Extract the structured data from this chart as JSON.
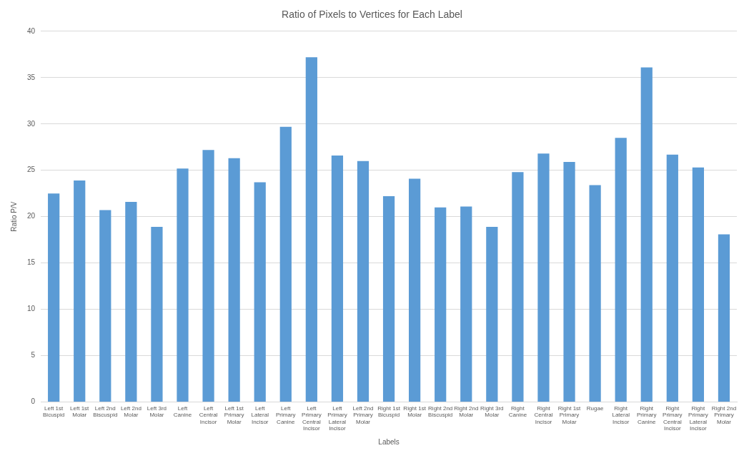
{
  "chart_data": {
    "type": "bar",
    "title": "Ratio of Pixels to Vertices for Each Label",
    "xlabel": "Labels",
    "ylabel": "Ratio P/V",
    "categories": [
      "Left 1st Bicuspid",
      "Left 1st Molar",
      "Left 2nd Biscuspid",
      "Left 2nd Molar",
      "Left 3rd Molar",
      "Left Canine",
      "Left Central Incisor",
      "Left 1st Primary Molar",
      "Left Lateral Incisor",
      "Left Primary Canine",
      "Left Primary Central Incisor",
      "Left Primary Lateral Incisor",
      "Left 2nd Primary Molar",
      "Right 1st Bicuspid",
      "Right 1st Molar",
      "Right 2nd Biscuspid",
      "Right 2nd Molar",
      "Right 3rd Molar",
      "Right Canine",
      "Right Central Incisor",
      "Right 1st Primary Molar",
      "Rugae",
      "Right Lateral Incisor",
      "Right Primary Canine",
      "Right Primary Central Incisor",
      "Right Primary Lateral Incisor",
      "Right 2nd Primary Molar"
    ],
    "values": [
      22.5,
      23.9,
      20.7,
      21.6,
      18.9,
      25.2,
      27.2,
      26.3,
      23.7,
      29.7,
      37.2,
      26.6,
      26.0,
      22.2,
      24.1,
      21.0,
      21.1,
      18.9,
      24.8,
      26.8,
      25.9,
      23.4,
      28.5,
      36.1,
      26.7,
      25.3,
      18.1
    ],
    "color": "#5b9bd5",
    "ylim": [
      0,
      40
    ],
    "yticks": [
      0,
      5,
      10,
      15,
      20,
      25,
      30,
      35,
      40
    ],
    "grid": "y"
  }
}
